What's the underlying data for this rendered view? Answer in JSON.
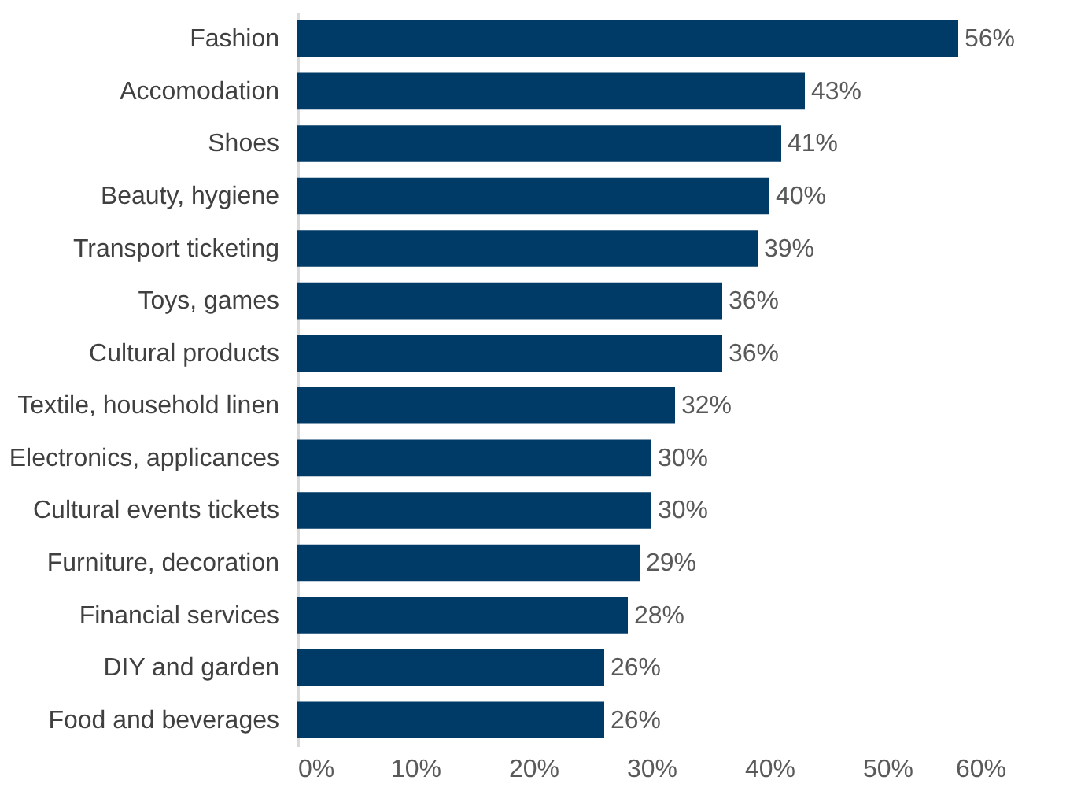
{
  "chart_data": {
    "type": "bar",
    "orientation": "horizontal",
    "categories": [
      "Fashion",
      "Accomodation",
      "Shoes",
      "Beauty, hygiene",
      "Transport ticketing",
      "Toys, games",
      "Cultural products",
      "Textile, household linen",
      "Electronics, applicances",
      "Cultural events tickets",
      "Furniture, decoration",
      "Financial services",
      "DIY and garden",
      "Food and beverages"
    ],
    "values": [
      56,
      43,
      41,
      40,
      39,
      36,
      36,
      32,
      30,
      30,
      29,
      28,
      26,
      26
    ],
    "value_labels": [
      "56%",
      "43%",
      "41%",
      "40%",
      "39%",
      "36%",
      "36%",
      "32%",
      "30%",
      "30%",
      "29%",
      "28%",
      "26%",
      "26%"
    ],
    "color": "#003a66",
    "xlim": [
      0,
      60
    ],
    "xticks": [
      {
        "value": 0,
        "label": "0%"
      },
      {
        "value": 10,
        "label": "10%"
      },
      {
        "value": 20,
        "label": "20%"
      },
      {
        "value": 30,
        "label": "30%"
      },
      {
        "value": 40,
        "label": "40%"
      },
      {
        "value": 50,
        "label": "50%"
      },
      {
        "value": 60,
        "label": "60%"
      }
    ],
    "grid": false
  }
}
